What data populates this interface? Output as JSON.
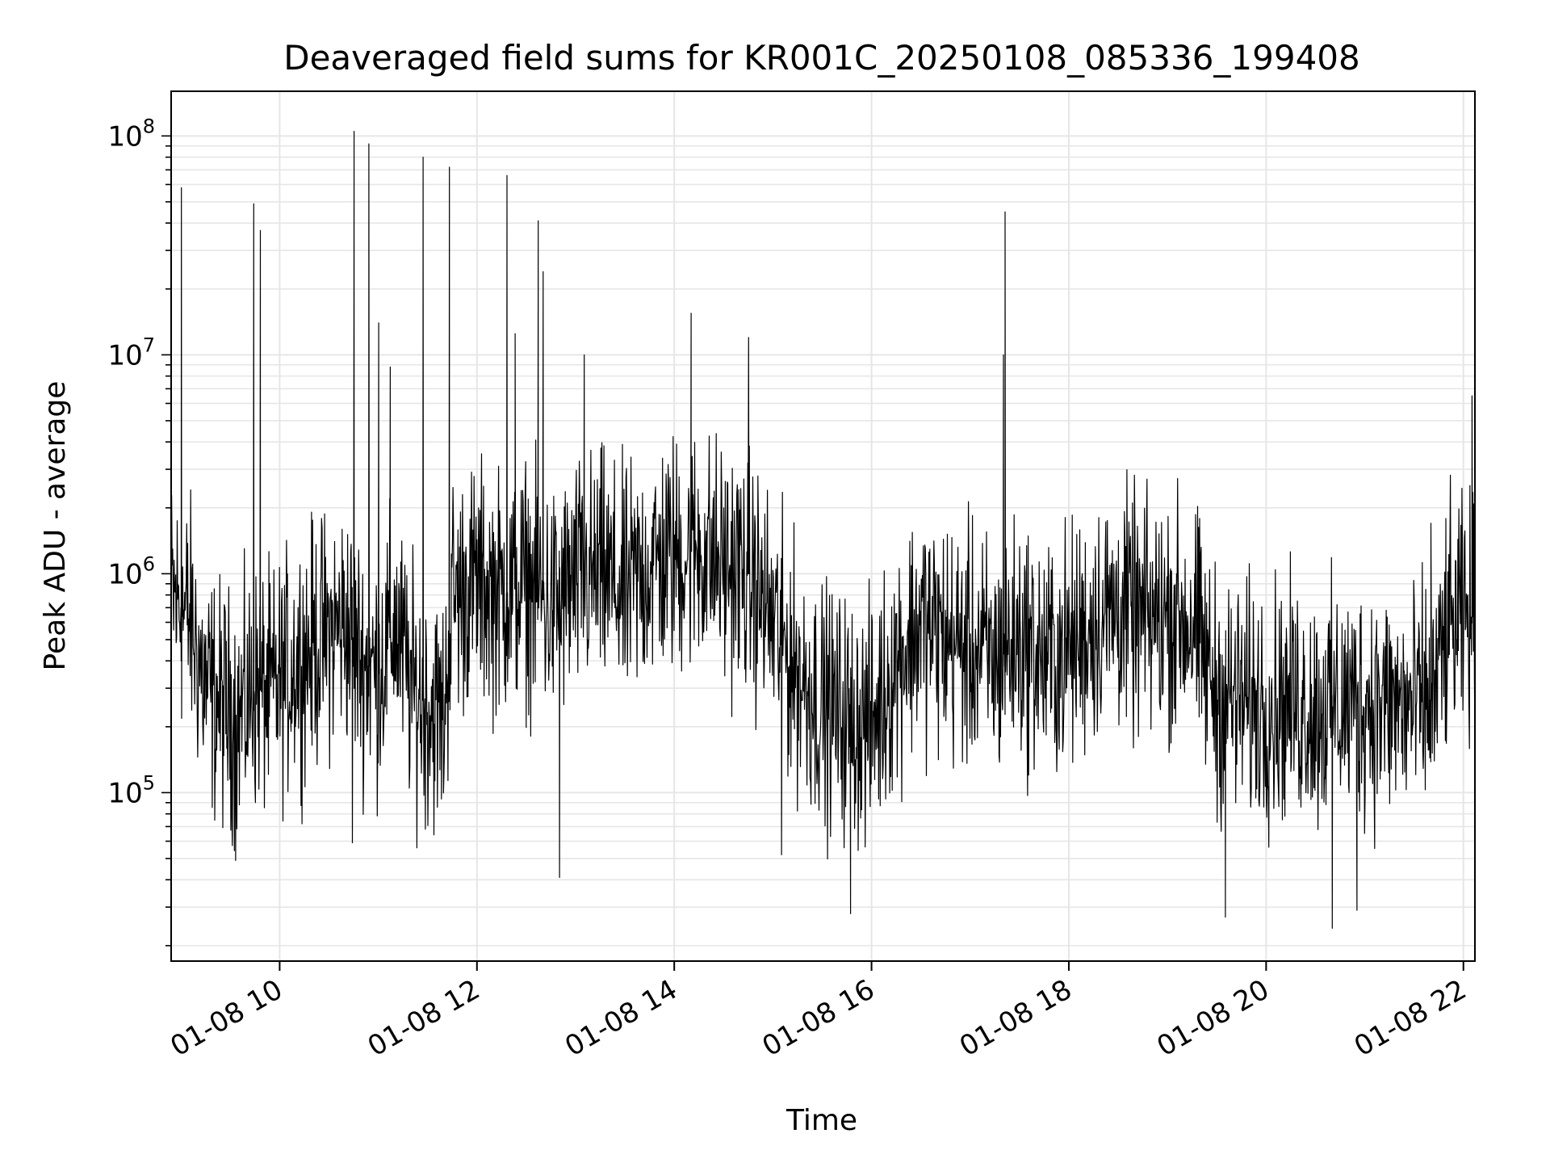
{
  "chart_data": {
    "type": "line",
    "title": "Deaveraged field sums for KR001C_20250108_085336_199408",
    "xlabel": "Time",
    "ylabel": "Peak ADU - average",
    "yscale": "log",
    "xlim": [
      "01-08 08:54",
      "01-08 22:07"
    ],
    "ylim": [
      17000,
      160000000
    ],
    "grid": true,
    "line_color": "#000000",
    "grid_color": "#e6e6e6",
    "x_ticks": [
      {
        "value": "01-08 10:00",
        "label": "01-08 10"
      },
      {
        "value": "01-08 12:00",
        "label": "01-08 12"
      },
      {
        "value": "01-08 14:00",
        "label": "01-08 14"
      },
      {
        "value": "01-08 16:00",
        "label": "01-08 16"
      },
      {
        "value": "01-08 18:00",
        "label": "01-08 18"
      },
      {
        "value": "01-08 20:00",
        "label": "01-08 20"
      },
      {
        "value": "01-08 22:00",
        "label": "01-08 22"
      }
    ],
    "y_ticks": [
      {
        "value": 100000,
        "base": "10",
        "exp": "5"
      },
      {
        "value": 1000000,
        "base": "10",
        "exp": "6"
      },
      {
        "value": 10000000,
        "base": "10",
        "exp": "7"
      },
      {
        "value": 100000000,
        "base": "10",
        "exp": "8"
      }
    ],
    "series": [
      {
        "x": [
          "01-08 08:54",
          "01-08 09:00",
          "01-08 09:06",
          "01-08 09:15",
          "01-08 09:25",
          "01-08 09:35",
          "01-08 09:45",
          "01-08 09:55",
          "01-08 10:10",
          "01-08 10:25",
          "01-08 10:40",
          "01-08 10:50",
          "01-08 11:00",
          "01-08 11:10",
          "01-08 11:20",
          "01-08 11:30",
          "01-08 11:40",
          "01-08 11:45",
          "01-08 12:00",
          "01-08 12:15",
          "01-08 12:30",
          "01-08 12:45",
          "01-08 13:00",
          "01-08 13:15",
          "01-08 13:30",
          "01-08 13:45",
          "01-08 14:00",
          "01-08 14:15",
          "01-08 14:30",
          "01-08 14:45",
          "01-08 15:00",
          "01-08 15:15",
          "01-08 15:30",
          "01-08 15:45",
          "01-08 16:00",
          "01-08 16:15",
          "01-08 16:30",
          "01-08 16:45",
          "01-08 17:00",
          "01-08 17:15",
          "01-08 17:30",
          "01-08 17:45",
          "01-08 18:00",
          "01-08 18:15",
          "01-08 18:30",
          "01-08 18:45",
          "01-08 19:00",
          "01-08 19:15",
          "01-08 19:30",
          "01-08 19:45",
          "01-08 20:00",
          "01-08 20:15",
          "01-08 20:30",
          "01-08 20:45",
          "01-08 21:00",
          "01-08 21:15",
          "01-08 21:30",
          "01-08 21:42",
          "01-08 21:50",
          "01-08 22:00",
          "01-08 22:07"
        ],
        "y": [
          800000,
          700000,
          600000,
          300000,
          250000,
          220000,
          300000,
          280000,
          400000,
          500000,
          600000,
          400000,
          350000,
          600000,
          300000,
          250000,
          220000,
          800000,
          900000,
          800000,
          900000,
          700000,
          900000,
          1000000,
          800000,
          1100000,
          1200000,
          1300000,
          1100000,
          1000000,
          600000,
          350000,
          250000,
          220000,
          200000,
          400000,
          600000,
          500000,
          450000,
          400000,
          500000,
          400000,
          450000,
          600000,
          700000,
          600000,
          650000,
          600000,
          280000,
          260000,
          250000,
          260000,
          240000,
          250000,
          260000,
          250000,
          240000,
          270000,
          550000,
          600000,
          650000
        ],
        "spikes": [
          {
            "x": "01-08 09:00",
            "y": 58000000
          },
          {
            "x": "01-08 09:44",
            "y": 49000000
          },
          {
            "x": "01-08 09:48",
            "y": 37000000
          },
          {
            "x": "01-08 10:45",
            "y": 105000000
          },
          {
            "x": "01-08 10:54",
            "y": 92000000
          },
          {
            "x": "01-08 11:00",
            "y": 14000000
          },
          {
            "x": "01-08 11:07",
            "y": 8800000
          },
          {
            "x": "01-08 11:27",
            "y": 80000000
          },
          {
            "x": "01-08 11:43",
            "y": 72000000
          },
          {
            "x": "01-08 12:18",
            "y": 66000000
          },
          {
            "x": "01-08 12:23",
            "y": 12500000
          },
          {
            "x": "01-08 12:37",
            "y": 41000000
          },
          {
            "x": "01-08 12:40",
            "y": 24000000
          },
          {
            "x": "01-08 13:05",
            "y": 10000000
          },
          {
            "x": "01-08 14:10",
            "y": 15500000
          },
          {
            "x": "01-08 14:45",
            "y": 12000000
          },
          {
            "x": "01-08 17:21",
            "y": 45000000
          },
          {
            "x": "01-08 17:20",
            "y": 10000000
          },
          {
            "x": "01-08 22:05",
            "y": 6500000
          },
          {
            "x": "01-08 21:40",
            "y": 1700000
          },
          {
            "x": "01-08 12:50",
            "y": 41000
          },
          {
            "x": "01-08 15:47",
            "y": 28000
          },
          {
            "x": "01-08 19:35",
            "y": 27000
          },
          {
            "x": "01-08 20:40",
            "y": 24000
          },
          {
            "x": "01-08 20:55",
            "y": 29000
          },
          {
            "x": "01-08 09:33",
            "y": 49000
          },
          {
            "x": "01-08 10:44",
            "y": 59000
          },
          {
            "x": "01-08 15:05",
            "y": 52000
          }
        ]
      }
    ]
  }
}
